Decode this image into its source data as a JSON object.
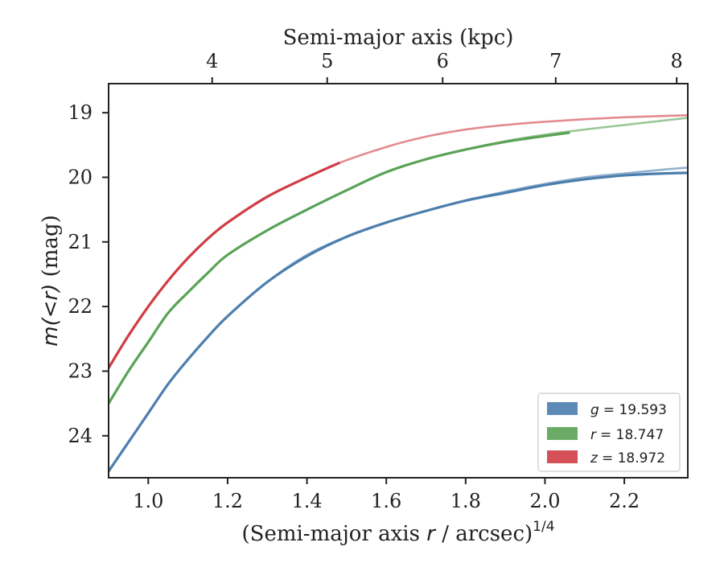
{
  "chart_data": {
    "type": "line",
    "xlabel": "(Semi-major axis r / arcsec)^1/4",
    "xlabel_parts": {
      "prefix": "(Semi-major axis ",
      "var": "r",
      "suffix": " / arcsec)",
      "sup": "1/4"
    },
    "ylabel": "m(<r) (mag)",
    "ylabel_parts": {
      "math": "m(<r)",
      "unit": " (mag)"
    },
    "top_xlabel": "Semi-major axis (kpc)",
    "xlim": [
      0.9,
      2.36
    ],
    "ylim": [
      24.65,
      18.55
    ],
    "y_inverted": true,
    "xticks": [
      1.0,
      1.2,
      1.4,
      1.6,
      1.8,
      2.0,
      2.2
    ],
    "xtick_labels": [
      "1.0",
      "1.2",
      "1.4",
      "1.6",
      "1.8",
      "2.0",
      "2.2"
    ],
    "yticks": [
      19,
      20,
      21,
      22,
      23,
      24
    ],
    "ytick_labels": [
      "19",
      "20",
      "21",
      "22",
      "23",
      "24"
    ],
    "top_ticks": [
      {
        "label": "4",
        "x": 1.161
      },
      {
        "label": "5",
        "x": 1.451
      },
      {
        "label": "6",
        "x": 1.742
      },
      {
        "label": "7",
        "x": 2.027
      },
      {
        "label": "8",
        "x": 2.332
      }
    ],
    "grid": false,
    "legend_position": "lower-right",
    "series": [
      {
        "name": "g = 19.593",
        "legend_var": "g",
        "legend_value": "= 19.593",
        "color": "#4c7ead",
        "faint_x": [
          0.9,
          0.95,
          1.0,
          1.05,
          1.1,
          1.15,
          1.2,
          1.3,
          1.4,
          1.5,
          1.6,
          1.7,
          1.8,
          1.9,
          2.0,
          2.1,
          2.2,
          2.3,
          2.36
        ],
        "faint_y": [
          24.55,
          24.1,
          23.65,
          23.2,
          22.82,
          22.47,
          22.15,
          21.62,
          21.2,
          20.92,
          20.7,
          20.52,
          20.36,
          20.22,
          20.1,
          20.0,
          19.94,
          19.88,
          19.85
        ],
        "solid_x": [
          0.9,
          0.95,
          1.0,
          1.05,
          1.1,
          1.15,
          1.2,
          1.3,
          1.4,
          1.5,
          1.6,
          1.7,
          1.8,
          1.9,
          2.0,
          2.1,
          2.2,
          2.3,
          2.36
        ],
        "solid_y": [
          24.55,
          24.1,
          23.65,
          23.2,
          22.82,
          22.47,
          22.15,
          21.62,
          21.22,
          20.92,
          20.7,
          20.52,
          20.36,
          20.24,
          20.12,
          20.03,
          19.97,
          19.94,
          19.93
        ]
      },
      {
        "name": "r = 18.747",
        "legend_var": "r",
        "legend_value": "= 18.747",
        "color": "#5aa356",
        "faint_x": [
          0.9,
          0.95,
          1.0,
          1.05,
          1.1,
          1.15,
          1.2,
          1.3,
          1.4,
          1.5,
          1.6,
          1.7,
          1.8,
          1.9,
          2.0,
          2.1,
          2.2,
          2.3,
          2.36
        ],
        "faint_y": [
          23.5,
          23.0,
          22.55,
          22.1,
          21.78,
          21.48,
          21.2,
          20.82,
          20.5,
          20.2,
          19.92,
          19.72,
          19.57,
          19.44,
          19.34,
          19.26,
          19.19,
          19.12,
          19.08
        ],
        "solid_x": [
          0.9,
          0.95,
          1.0,
          1.05,
          1.1,
          1.15,
          1.2,
          1.3,
          1.4,
          1.5,
          1.6,
          1.7,
          1.8,
          1.9,
          2.0,
          2.06
        ],
        "solid_y": [
          23.5,
          23.0,
          22.55,
          22.1,
          21.78,
          21.48,
          21.2,
          20.82,
          20.5,
          20.2,
          19.92,
          19.72,
          19.57,
          19.45,
          19.36,
          19.31
        ]
      },
      {
        "name": "z = 18.972",
        "legend_var": "z",
        "legend_value": "= 18.972",
        "color": "#d03d44",
        "faint_x": [
          0.9,
          0.95,
          1.0,
          1.05,
          1.1,
          1.15,
          1.2,
          1.3,
          1.4,
          1.48,
          1.6,
          1.7,
          1.8,
          1.9,
          2.0,
          2.1,
          2.2,
          2.3,
          2.36
        ],
        "faint_y": [
          22.95,
          22.45,
          22.0,
          21.6,
          21.25,
          20.95,
          20.7,
          20.3,
          20.0,
          19.78,
          19.53,
          19.37,
          19.26,
          19.19,
          19.14,
          19.1,
          19.07,
          19.05,
          19.04
        ],
        "solid_x": [
          0.9,
          0.95,
          1.0,
          1.05,
          1.1,
          1.15,
          1.2,
          1.3,
          1.4,
          1.48
        ],
        "solid_y": [
          22.95,
          22.45,
          22.0,
          21.6,
          21.25,
          20.95,
          20.7,
          20.3,
          20.0,
          19.78
        ]
      }
    ]
  }
}
